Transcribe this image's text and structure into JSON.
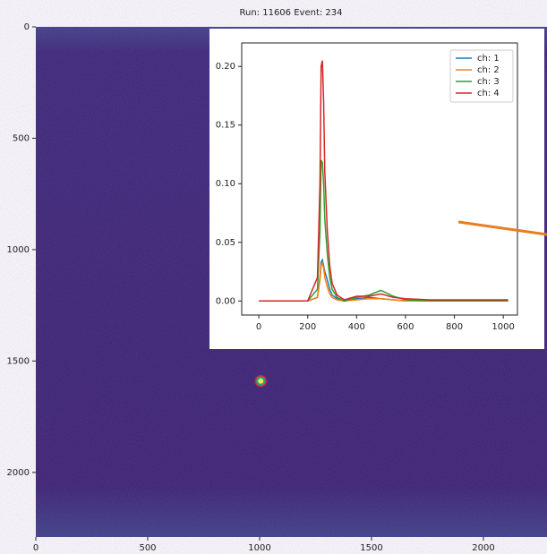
{
  "chart_data": [
    {
      "type": "image",
      "title": "Run:  11606  Event: 234",
      "xlim": [
        0,
        2284
      ],
      "ylim": [
        2290,
        0
      ],
      "xticks": [
        0,
        500,
        1000,
        1500,
        2000
      ],
      "yticks": [
        0,
        500,
        1000,
        1500,
        2000
      ],
      "marker": {
        "x": 1005,
        "y": 1590
      }
    },
    {
      "type": "line",
      "x": [
        0,
        100,
        200,
        240,
        250,
        255,
        260,
        265,
        270,
        280,
        290,
        300,
        320,
        350,
        400,
        450,
        500,
        550,
        600,
        700,
        800,
        900,
        1020
      ],
      "series": [
        {
          "name": "ch: 1",
          "color": "#1f77b4",
          "values": [
            0,
            0,
            0,
            0.003,
            0.02,
            0.033,
            0.035,
            0.03,
            0.025,
            0.018,
            0.01,
            0.005,
            0.002,
            0,
            0.002,
            0.003,
            0.002,
            0.001,
            0,
            0,
            0,
            0,
            0
          ]
        },
        {
          "name": "ch: 2",
          "color": "#ff7f0e",
          "values": [
            0,
            0,
            0,
            0.003,
            0.018,
            0.03,
            0.032,
            0.028,
            0.02,
            0.012,
            0.006,
            0.003,
            0.001,
            0,
            0.001,
            0.002,
            0.002,
            0.001,
            0,
            0,
            0,
            0,
            0
          ]
        },
        {
          "name": "ch: 3",
          "color": "#2ca02c",
          "values": [
            0,
            0,
            0,
            0.01,
            0.06,
            0.12,
            0.118,
            0.1,
            0.07,
            0.04,
            0.02,
            0.01,
            0.003,
            0,
            0.003,
            0.005,
            0.009,
            0.004,
            0.001,
            0,
            0,
            0,
            0
          ]
        },
        {
          "name": "ch: 4",
          "color": "#d62728",
          "values": [
            0,
            0,
            0,
            0.02,
            0.1,
            0.2,
            0.205,
            0.17,
            0.11,
            0.06,
            0.03,
            0.015,
            0.005,
            0.001,
            0.004,
            0.004,
            0.006,
            0.003,
            0.002,
            0.001,
            0.001,
            0.001,
            0.001
          ]
        }
      ],
      "xlim": [
        -70,
        1058
      ],
      "ylim": [
        -0.012,
        0.22
      ],
      "xticks": [
        0,
        200,
        400,
        600,
        800,
        1000
      ],
      "yticks": [
        {
          "value": 0,
          "label": "0.00"
        },
        {
          "value": 0.05,
          "label": "0.05"
        },
        {
          "value": 0.1,
          "label": "0.10"
        },
        {
          "value": 0.15,
          "label": "0.15"
        },
        {
          "value": 0.2,
          "label": "0.20"
        }
      ],
      "legend": "upper right"
    }
  ]
}
